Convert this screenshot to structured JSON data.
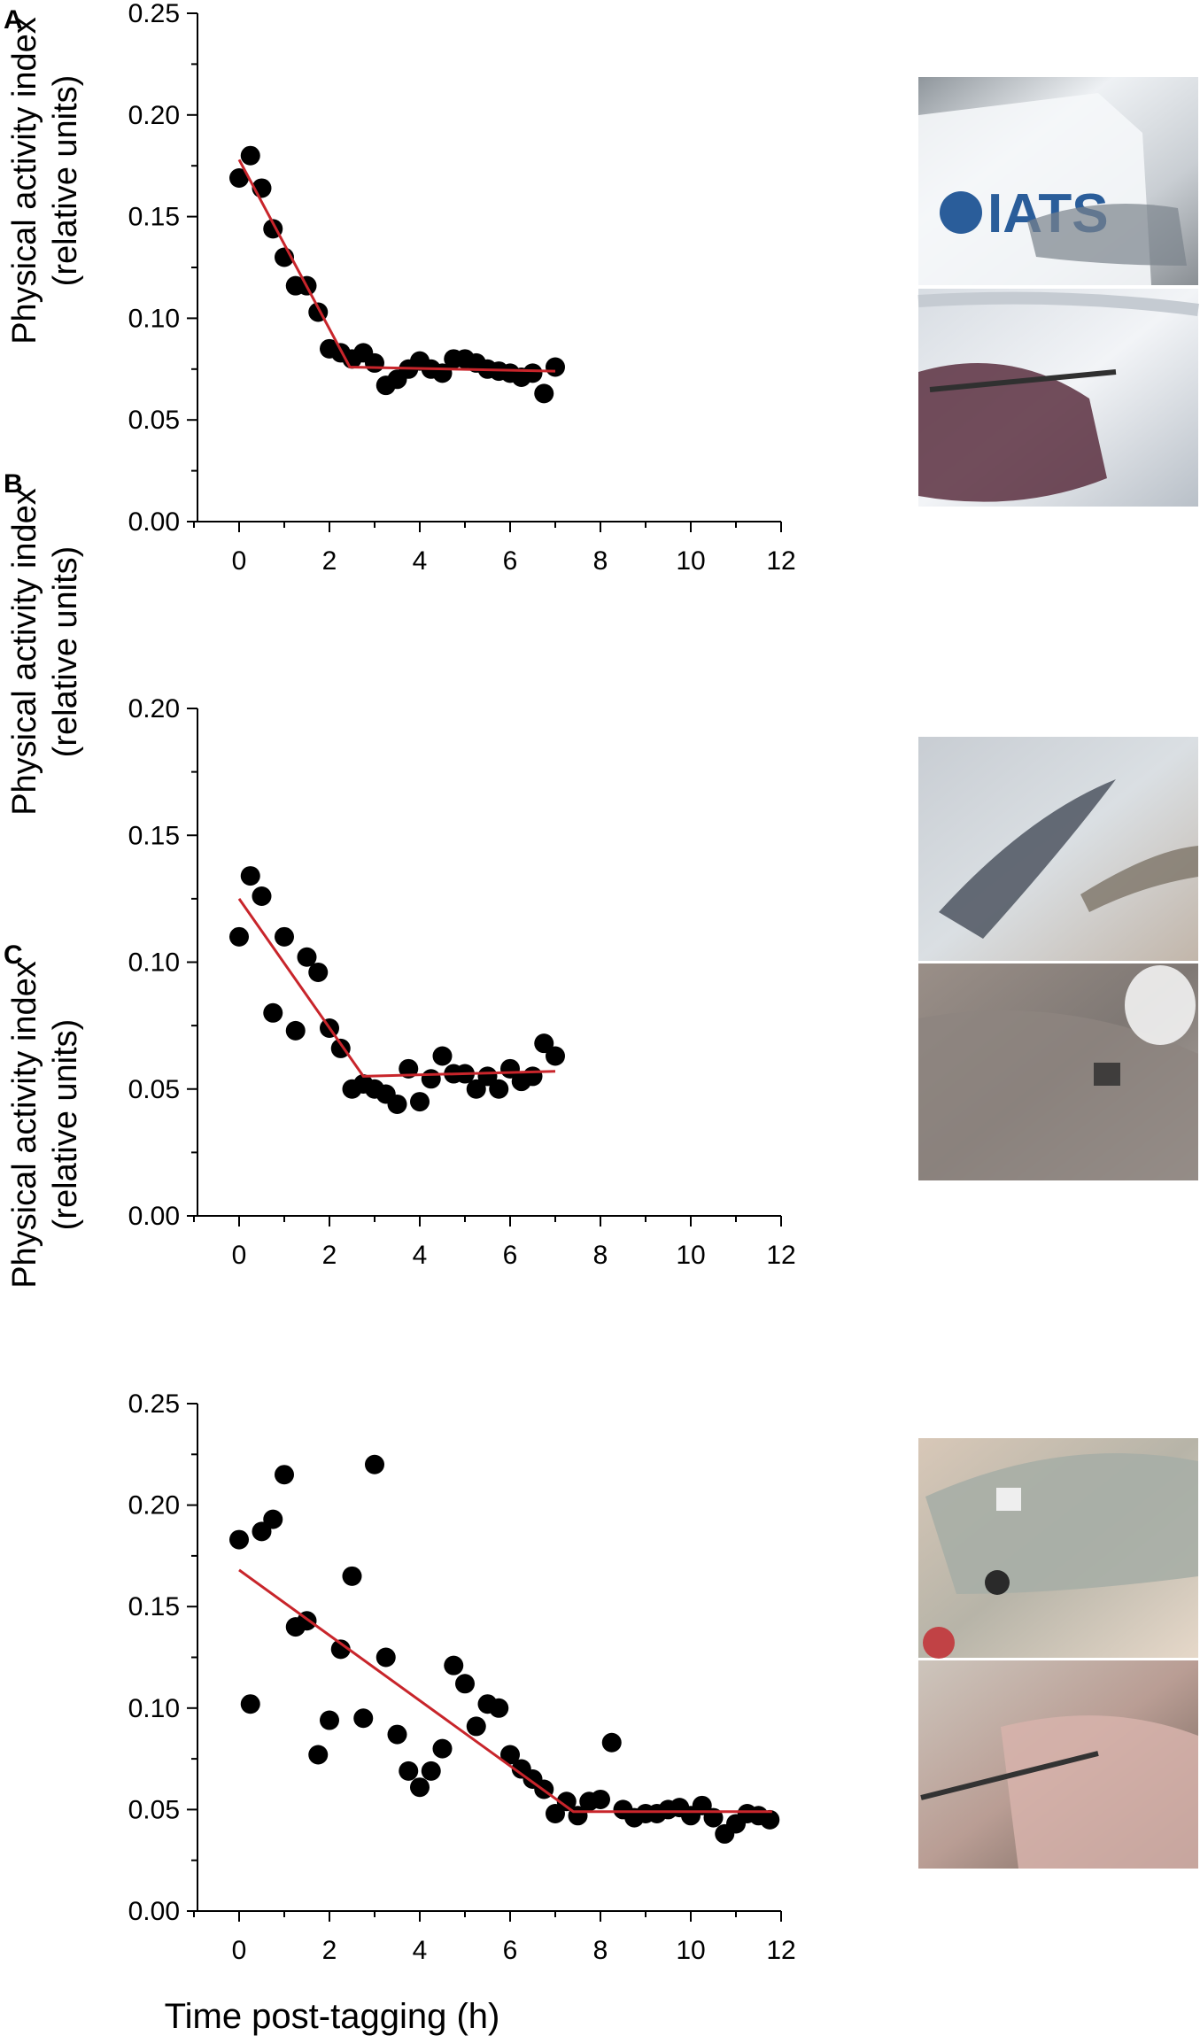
{
  "figure": {
    "x_axis_title": "Time post-tagging (h)",
    "photo_logo_text": "IATS"
  },
  "chart_data": [
    {
      "type": "scatter",
      "panel": "A",
      "ylabel": [
        "Physical activity index",
        "(relative units)"
      ],
      "xlim": [
        0,
        12
      ],
      "ylim": [
        0,
        0.25
      ],
      "xticks": [
        "0",
        "2",
        "4",
        "6",
        "8",
        "10",
        "12"
      ],
      "yticks": [
        "0.00",
        "0.05",
        "0.10",
        "0.15",
        "0.20",
        "0.25"
      ],
      "grid": false,
      "points": [
        [
          0,
          0.169
        ],
        [
          0.25,
          0.18
        ],
        [
          0.5,
          0.164
        ],
        [
          0.75,
          0.144
        ],
        [
          1.0,
          0.13
        ],
        [
          1.25,
          0.116
        ],
        [
          1.5,
          0.116
        ],
        [
          1.75,
          0.103
        ],
        [
          2.0,
          0.085
        ],
        [
          2.25,
          0.083
        ],
        [
          2.5,
          0.08
        ],
        [
          2.75,
          0.083
        ],
        [
          3.0,
          0.078
        ],
        [
          3.25,
          0.067
        ],
        [
          3.5,
          0.07
        ],
        [
          3.75,
          0.075
        ],
        [
          4.0,
          0.079
        ],
        [
          4.25,
          0.075
        ],
        [
          4.5,
          0.073
        ],
        [
          4.75,
          0.08
        ],
        [
          5.0,
          0.08
        ],
        [
          5.25,
          0.078
        ],
        [
          5.5,
          0.075
        ],
        [
          5.75,
          0.074
        ],
        [
          6.0,
          0.073
        ],
        [
          6.25,
          0.071
        ],
        [
          6.5,
          0.073
        ],
        [
          6.75,
          0.063
        ],
        [
          7.0,
          0.076
        ]
      ],
      "fit_line": [
        [
          0,
          0.178
        ],
        [
          2.45,
          0.076
        ],
        [
          7.0,
          0.074
        ]
      ],
      "fit_color": "#c8252b"
    },
    {
      "type": "scatter",
      "panel": "B",
      "ylabel": [
        "Physical activity index",
        "(relative units)"
      ],
      "xlim": [
        0,
        12
      ],
      "ylim": [
        0,
        0.2
      ],
      "xticks": [
        "0",
        "2",
        "4",
        "6",
        "8",
        "10",
        "12"
      ],
      "yticks": [
        "0.00",
        "0.05",
        "0.10",
        "0.15",
        "0.20"
      ],
      "grid": false,
      "points": [
        [
          0,
          0.11
        ],
        [
          0.25,
          0.134
        ],
        [
          0.5,
          0.126
        ],
        [
          0.75,
          0.08
        ],
        [
          1.0,
          0.11
        ],
        [
          1.25,
          0.073
        ],
        [
          1.5,
          0.102
        ],
        [
          1.75,
          0.096
        ],
        [
          2.0,
          0.074
        ],
        [
          2.25,
          0.066
        ],
        [
          2.5,
          0.05
        ],
        [
          2.75,
          0.052
        ],
        [
          3.0,
          0.05
        ],
        [
          3.25,
          0.048
        ],
        [
          3.5,
          0.044
        ],
        [
          3.75,
          0.058
        ],
        [
          4.0,
          0.045
        ],
        [
          4.25,
          0.054
        ],
        [
          4.5,
          0.063
        ],
        [
          4.75,
          0.056
        ],
        [
          5.0,
          0.056
        ],
        [
          5.25,
          0.05
        ],
        [
          5.5,
          0.055
        ],
        [
          5.75,
          0.05
        ],
        [
          6.0,
          0.058
        ],
        [
          6.25,
          0.053
        ],
        [
          6.5,
          0.055
        ],
        [
          6.75,
          0.068
        ],
        [
          7.0,
          0.063
        ]
      ],
      "fit_line": [
        [
          0,
          0.125
        ],
        [
          2.75,
          0.055
        ],
        [
          7.0,
          0.057
        ]
      ],
      "fit_color": "#c8252b"
    },
    {
      "type": "scatter",
      "panel": "C",
      "ylabel": [
        "Physical activity index",
        "(relative units)"
      ],
      "xlim": [
        0,
        12
      ],
      "ylim": [
        0,
        0.25
      ],
      "xticks": [
        "0",
        "2",
        "4",
        "6",
        "8",
        "10",
        "12"
      ],
      "yticks": [
        "0.00",
        "0.05",
        "0.10",
        "0.15",
        "0.20",
        "0.25"
      ],
      "grid": false,
      "points": [
        [
          0,
          0.183
        ],
        [
          0.25,
          0.102
        ],
        [
          0.5,
          0.187
        ],
        [
          0.75,
          0.193
        ],
        [
          1.0,
          0.215
        ],
        [
          1.25,
          0.14
        ],
        [
          1.5,
          0.143
        ],
        [
          1.75,
          0.077
        ],
        [
          2.0,
          0.094
        ],
        [
          2.25,
          0.129
        ],
        [
          2.5,
          0.165
        ],
        [
          2.75,
          0.095
        ],
        [
          3.0,
          0.22
        ],
        [
          3.25,
          0.125
        ],
        [
          3.5,
          0.087
        ],
        [
          3.75,
          0.069
        ],
        [
          4.0,
          0.061
        ],
        [
          4.25,
          0.069
        ],
        [
          4.5,
          0.08
        ],
        [
          4.75,
          0.121
        ],
        [
          5.0,
          0.112
        ],
        [
          5.25,
          0.091
        ],
        [
          5.5,
          0.102
        ],
        [
          5.75,
          0.1
        ],
        [
          6.0,
          0.077
        ],
        [
          6.25,
          0.07
        ],
        [
          6.5,
          0.065
        ],
        [
          6.75,
          0.06
        ],
        [
          7.0,
          0.048
        ],
        [
          7.25,
          0.054
        ],
        [
          7.5,
          0.047
        ],
        [
          7.75,
          0.054
        ],
        [
          8.0,
          0.055
        ],
        [
          8.25,
          0.083
        ],
        [
          8.5,
          0.05
        ],
        [
          8.75,
          0.046
        ],
        [
          9.0,
          0.048
        ],
        [
          9.25,
          0.048
        ],
        [
          9.5,
          0.05
        ],
        [
          9.75,
          0.051
        ],
        [
          10.0,
          0.047
        ],
        [
          10.25,
          0.052
        ],
        [
          10.5,
          0.046
        ],
        [
          10.75,
          0.038
        ],
        [
          11.0,
          0.043
        ],
        [
          11.25,
          0.048
        ],
        [
          11.5,
          0.047
        ],
        [
          11.75,
          0.045
        ]
      ],
      "fit_line": [
        [
          0,
          0.168
        ],
        [
          7.4,
          0.049
        ],
        [
          11.8,
          0.049
        ]
      ],
      "fit_color": "#c8252b"
    }
  ]
}
